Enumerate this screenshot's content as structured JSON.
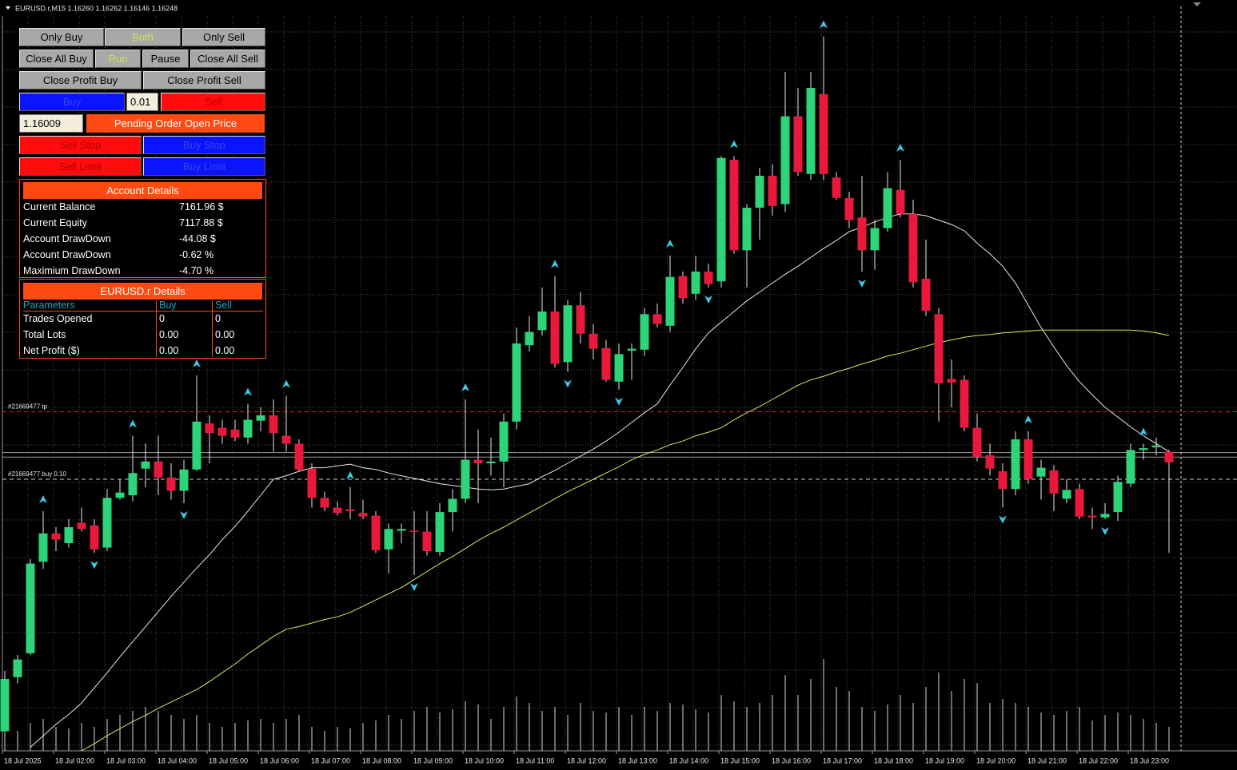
{
  "header": {
    "symbol_line": "EURUSD.r,M15  1.16260 1.16262 1.16146 1.16248"
  },
  "panel": {
    "mode_buttons": [
      "Only Buy",
      "Both",
      "Only Sell"
    ],
    "control_buttons": [
      "Close All Buy",
      "Run",
      "Pause",
      "Close All Sell"
    ],
    "profit_buttons": [
      "Close Profit Buy",
      "Close Profit Sell"
    ],
    "buy": "Buy",
    "lot": "0.01",
    "sell": "Sell",
    "pending_price": "1.16009",
    "pending_label": "Pending Order Open Price",
    "stop_buttons": [
      "Sell Stop",
      "Buy Stop"
    ],
    "limit_buttons": [
      "Sell Limit",
      "Buy Limit"
    ]
  },
  "account": {
    "title": "Account Details",
    "rows": [
      [
        "Current Balance",
        "7161.96 $"
      ],
      [
        "Current Equity",
        "7117.88 $"
      ],
      [
        "Account DrawDown",
        "-44.08 $"
      ],
      [
        "Account DrawDown",
        "-0.62 %"
      ],
      [
        "Maximium DrawDown",
        "-4.70 %"
      ]
    ]
  },
  "symbol_details": {
    "title": "EURUSD.r Details",
    "columns": [
      "Parameters",
      "Buy",
      "Sell"
    ],
    "rows": [
      [
        "Trades Opened",
        "0",
        "0"
      ],
      [
        "Total Lots",
        "0.00",
        "0.00"
      ],
      [
        "Net Profit ($)",
        "0.00",
        "0.00"
      ]
    ]
  },
  "chart_data": {
    "type": "candlestick",
    "ylim": [
      1.15923,
      1.16769
    ],
    "up_color": "#2ed47a",
    "down_color": "#e8193c",
    "flat_color": "#ffffff",
    "ohlc": [
      [
        1.15945,
        1.16013,
        1.15945,
        1.16004
      ],
      [
        1.16006,
        1.16031,
        1.15999,
        1.16026
      ],
      [
        1.16033,
        1.16139,
        1.16031,
        1.16134
      ],
      [
        1.16136,
        1.16193,
        1.16128,
        1.16168
      ],
      [
        1.16168,
        1.16175,
        1.16148,
        1.16161
      ],
      [
        1.16157,
        1.16184,
        1.16152,
        1.16175
      ],
      [
        1.1618,
        1.16197,
        1.1617,
        1.16173
      ],
      [
        1.16177,
        1.16184,
        1.16146,
        1.1615
      ],
      [
        1.16152,
        1.16218,
        1.16148,
        1.16208
      ],
      [
        1.16208,
        1.16229,
        1.16206,
        1.16214
      ],
      [
        1.16211,
        1.16278,
        1.16204,
        1.16236
      ],
      [
        1.16241,
        1.16269,
        1.1622,
        1.16249
      ],
      [
        1.16249,
        1.16278,
        1.16211,
        1.16231
      ],
      [
        1.16231,
        1.16247,
        1.16206,
        1.16216
      ],
      [
        1.16216,
        1.16251,
        1.16202,
        1.1624
      ],
      [
        1.1624,
        1.16346,
        1.16238,
        1.16294
      ],
      [
        1.16292,
        1.16301,
        1.16247,
        1.16281
      ],
      [
        1.16287,
        1.16296,
        1.16269,
        1.16278
      ],
      [
        1.16285,
        1.16296,
        1.16272,
        1.16276
      ],
      [
        1.16276,
        1.16314,
        1.16269,
        1.16296
      ],
      [
        1.16295,
        1.1631,
        1.16283,
        1.16301
      ],
      [
        1.16301,
        1.16319,
        1.1626,
        1.16281
      ],
      [
        1.16278,
        1.16323,
        1.1626,
        1.16269
      ],
      [
        1.16269,
        1.16274,
        1.16238,
        1.1624
      ],
      [
        1.16241,
        1.16247,
        1.16197,
        1.16208
      ],
      [
        1.16208,
        1.16215,
        1.16193,
        1.16197
      ],
      [
        1.16197,
        1.16204,
        1.16188,
        1.16191
      ],
      [
        1.16195,
        1.1622,
        1.16184,
        1.16193
      ],
      [
        1.16191,
        1.16206,
        1.16184,
        1.16187
      ],
      [
        1.16188,
        1.16193,
        1.16146,
        1.16149
      ],
      [
        1.1615,
        1.16179,
        1.16123,
        1.16173
      ],
      [
        1.16171,
        1.16179,
        1.16157,
        1.16173
      ],
      [
        1.16171,
        1.16193,
        1.16121,
        1.1617
      ],
      [
        1.1617,
        1.16193,
        1.16143,
        1.16148
      ],
      [
        1.16147,
        1.16202,
        1.16143,
        1.16192
      ],
      [
        1.16192,
        1.16218,
        1.1617,
        1.16207
      ],
      [
        1.16207,
        1.16319,
        1.16202,
        1.16251
      ],
      [
        1.16251,
        1.16285,
        1.16202,
        1.16247
      ],
      [
        1.16247,
        1.16276,
        1.16233,
        1.16249
      ],
      [
        1.16249,
        1.16303,
        1.1622,
        1.16294
      ],
      [
        1.16294,
        1.164,
        1.16285,
        1.16382
      ],
      [
        1.1638,
        1.16413,
        1.16373,
        1.16395
      ],
      [
        1.16397,
        1.16445,
        1.16391,
        1.16418
      ],
      [
        1.16418,
        1.16458,
        1.16355,
        1.16359
      ],
      [
        1.16361,
        1.16431,
        1.1635,
        1.16425
      ],
      [
        1.16425,
        1.1644,
        1.16382,
        1.16393
      ],
      [
        1.16393,
        1.16404,
        1.16364,
        1.16376
      ],
      [
        1.16377,
        1.16386,
        1.16339,
        1.16341
      ],
      [
        1.16339,
        1.16382,
        1.1633,
        1.1637
      ],
      [
        1.16374,
        1.16382,
        1.16341,
        1.16376
      ],
      [
        1.16375,
        1.16422,
        1.16368,
        1.16415
      ],
      [
        1.16415,
        1.16427,
        1.164,
        1.16404
      ],
      [
        1.16402,
        1.16481,
        1.16395,
        1.16457
      ],
      [
        1.16458,
        1.16463,
        1.16427,
        1.16433
      ],
      [
        1.16438,
        1.16481,
        1.16431,
        1.16463
      ],
      [
        1.16463,
        1.16472,
        1.16445,
        1.16449
      ],
      [
        1.16452,
        1.16593,
        1.16445,
        1.16591
      ],
      [
        1.16589,
        1.16593,
        1.16483,
        1.16487
      ],
      [
        1.16487,
        1.16539,
        1.16445,
        1.16535
      ],
      [
        1.16535,
        1.1658,
        1.16499,
        1.16571
      ],
      [
        1.16571,
        1.16584,
        1.16526,
        1.16537
      ],
      [
        1.16539,
        1.16688,
        1.1653,
        1.16638
      ],
      [
        1.16638,
        1.1667,
        1.16571,
        1.16575
      ],
      [
        1.16573,
        1.16688,
        1.16566,
        1.1667
      ],
      [
        1.16663,
        1.16728,
        1.16566,
        1.16573
      ],
      [
        1.16569,
        1.16575,
        1.16544,
        1.16546
      ],
      [
        1.16546,
        1.16553,
        1.16512,
        1.16521
      ],
      [
        1.16524,
        1.16571,
        1.16463,
        1.16487
      ],
      [
        1.16487,
        1.16521,
        1.16465,
        1.16512
      ],
      [
        1.16512,
        1.16575,
        1.16508,
        1.16557
      ],
      [
        1.16555,
        1.16589,
        1.16524,
        1.16528
      ],
      [
        1.16528,
        1.16544,
        1.16445,
        1.16451
      ],
      [
        1.16455,
        1.16499,
        1.16413,
        1.16419
      ],
      [
        1.16415,
        1.16422,
        1.16294,
        1.16337
      ],
      [
        1.16342,
        1.16364,
        1.1631,
        1.16338
      ],
      [
        1.16341,
        1.16346,
        1.16283,
        1.16287
      ],
      [
        1.16287,
        1.16303,
        1.16249,
        1.16254
      ],
      [
        1.16256,
        1.16269,
        1.16233,
        1.16241
      ],
      [
        1.16238,
        1.16247,
        1.16197,
        1.16218
      ],
      [
        1.16218,
        1.16283,
        1.16211,
        1.16274
      ],
      [
        1.16274,
        1.16283,
        1.16224,
        1.16229
      ],
      [
        1.16232,
        1.16251,
        1.16206,
        1.16242
      ],
      [
        1.16239,
        1.16245,
        1.16193,
        1.16213
      ],
      [
        1.16207,
        1.16229,
        1.16202,
        1.16217
      ],
      [
        1.16218,
        1.16224,
        1.16184,
        1.16187
      ],
      [
        1.16188,
        1.16197,
        1.16173,
        1.16186
      ],
      [
        1.16186,
        1.16202,
        1.16184,
        1.1619
      ],
      [
        1.16192,
        1.16233,
        1.16182,
        1.16226
      ],
      [
        1.16224,
        1.16269,
        1.1622,
        1.16262
      ],
      [
        1.16262,
        1.16269,
        1.16251,
        1.16264
      ],
      [
        1.16265,
        1.16276,
        1.16256,
        1.16267
      ],
      [
        1.1626,
        1.16262,
        1.16146,
        1.16248
      ]
    ],
    "lines": [
      {
        "color": "#e8e8e8",
        "values": [
          null,
          null,
          1.15927,
          1.1594,
          1.15953,
          1.15964,
          1.15977,
          1.15994,
          1.16011,
          1.16029,
          1.16046,
          1.16063,
          1.1608,
          1.16097,
          1.16113,
          1.16129,
          1.16144,
          1.16161,
          1.16176,
          1.16193,
          1.16211,
          1.16229,
          1.16233,
          1.16238,
          1.16242,
          1.16242,
          1.16244,
          1.16246,
          1.16242,
          1.1624,
          1.16236,
          1.16233,
          1.1623,
          1.16227,
          1.16224,
          1.16222,
          1.1622,
          1.16218,
          1.16217,
          1.16218,
          1.16221,
          1.16224,
          1.16232,
          1.16239,
          1.16247,
          1.16255,
          1.16263,
          1.16272,
          1.16282,
          1.16293,
          1.16304,
          1.16314,
          1.16335,
          1.16355,
          1.16376,
          1.16394,
          1.16406,
          1.16418,
          1.1643,
          1.1644,
          1.1645,
          1.1646,
          1.16469,
          1.16479,
          1.16489,
          1.16498,
          1.16508,
          1.16513,
          1.16519,
          1.16524,
          1.16528,
          1.16528,
          1.16526,
          1.16521,
          1.16516,
          1.16509,
          1.16495,
          1.16483,
          1.16469,
          1.1645,
          1.16425,
          1.164,
          1.16378,
          1.16357,
          1.16339,
          1.16324,
          1.1631,
          1.16299,
          1.16288,
          1.16278,
          1.16269,
          1.1626
        ]
      },
      {
        "color": "#e6e65a",
        "values": [
          null,
          null,
          null,
          null,
          null,
          null,
          1.15923,
          1.15931,
          1.1594,
          1.15948,
          1.15956,
          1.15963,
          1.15971,
          1.15978,
          1.15985,
          1.15992,
          1.16001,
          1.16011,
          1.16021,
          1.16032,
          1.16042,
          1.16052,
          1.1606,
          1.16063,
          1.16067,
          1.16071,
          1.16074,
          1.16079,
          1.16086,
          1.16093,
          1.161,
          1.16107,
          1.16116,
          1.16125,
          1.16134,
          1.16142,
          1.16151,
          1.1616,
          1.16168,
          1.16175,
          1.16183,
          1.16191,
          1.16199,
          1.16207,
          1.16215,
          1.16222,
          1.16229,
          1.16236,
          1.16243,
          1.16251,
          1.16257,
          1.16262,
          1.16268,
          1.16272,
          1.16278,
          1.16282,
          1.16287,
          1.16296,
          1.16304,
          1.16311,
          1.16319,
          1.16327,
          1.16335,
          1.16341,
          1.16345,
          1.1635,
          1.16354,
          1.16359,
          1.16363,
          1.16368,
          1.16371,
          1.16375,
          1.16379,
          1.16383,
          1.16386,
          1.16389,
          1.16391,
          1.16392,
          1.16394,
          1.16395,
          1.16396,
          1.16397,
          1.16397,
          1.16397,
          1.16397,
          1.16397,
          1.16397,
          1.16397,
          1.16397,
          1.16396,
          1.16394,
          1.16391
        ]
      }
    ],
    "fractal_color": "#3fc8e4",
    "fractal_up": [
      null,
      null,
      null,
      1.16193,
      null,
      null,
      null,
      null,
      null,
      null,
      1.16278,
      null,
      null,
      null,
      null,
      1.16346,
      null,
      null,
      null,
      1.16314,
      null,
      null,
      1.16323,
      null,
      null,
      null,
      null,
      1.1622,
      null,
      null,
      null,
      null,
      null,
      null,
      null,
      null,
      1.16319,
      null,
      null,
      null,
      null,
      null,
      null,
      1.16458,
      null,
      null,
      null,
      null,
      null,
      null,
      null,
      null,
      1.16481,
      null,
      null,
      null,
      null,
      1.16593,
      null,
      null,
      null,
      null,
      null,
      null,
      1.16728,
      null,
      null,
      null,
      null,
      null,
      1.16589,
      null,
      null,
      null,
      null,
      null,
      null,
      null,
      null,
      null,
      1.16283,
      null,
      null,
      null,
      null,
      null,
      null,
      null,
      null,
      1.16269,
      null,
      null
    ],
    "fractal_down": [
      null,
      null,
      null,
      null,
      null,
      null,
      null,
      1.16146,
      null,
      null,
      null,
      null,
      null,
      null,
      1.16202,
      null,
      null,
      null,
      null,
      null,
      null,
      null,
      null,
      null,
      null,
      null,
      null,
      null,
      null,
      null,
      null,
      null,
      1.16121,
      null,
      null,
      null,
      null,
      null,
      null,
      null,
      null,
      null,
      null,
      null,
      1.1635,
      null,
      null,
      null,
      1.1633,
      null,
      null,
      null,
      null,
      null,
      null,
      1.16445,
      null,
      null,
      null,
      null,
      null,
      null,
      null,
      null,
      null,
      null,
      null,
      1.16463,
      null,
      null,
      null,
      null,
      null,
      null,
      null,
      null,
      null,
      null,
      1.16197,
      null,
      null,
      null,
      null,
      null,
      null,
      null,
      1.16184,
      null,
      null,
      null,
      null,
      null
    ],
    "vlim": [
      0,
      940
    ],
    "volumes": [
      30,
      25,
      35,
      40,
      30,
      28,
      35,
      30,
      40,
      45,
      50,
      55,
      50,
      45,
      40,
      45,
      35,
      30,
      35,
      38,
      40,
      35,
      40,
      45,
      30,
      25,
      30,
      28,
      35,
      38,
      45,
      40,
      50,
      55,
      48,
      52,
      62,
      58,
      40,
      55,
      68,
      60,
      50,
      55,
      45,
      60,
      50,
      48,
      55,
      45,
      55,
      50,
      60,
      58,
      52,
      48,
      70,
      62,
      55,
      60,
      70,
      95,
      70,
      90,
      115,
      80,
      75,
      55,
      50,
      58,
      70,
      60,
      80,
      98,
      75,
      90,
      85,
      60,
      65,
      60,
      55,
      48,
      45,
      50,
      55,
      38,
      45,
      48,
      45,
      40,
      35,
      30
    ],
    "order_lines": [
      {
        "label": "#21669477 tp",
        "value": 1.16305,
        "color": "#e02020"
      },
      {
        "label": "#21669477 buy 0.10",
        "value": 1.16229,
        "color": "#d0d0d0"
      }
    ],
    "price_lines": [
      1.16259,
      1.16254
    ],
    "time_labels": [
      "18 Jul 2025",
      "18 Jul 02:00",
      "18 Jul 03:00",
      "18 Jul 04:00",
      "18 Jul 05:00",
      "18 Jul 06:00",
      "18 Jul 07:00",
      "18 Jul 08:00",
      "18 Jul 09:00",
      "18 Jul 10:00",
      "18 Jul 11:00",
      "18 Jul 12:00",
      "18 Jul 13:00",
      "18 Jul 14:00",
      "18 Jul 15:00",
      "18 Jul 16:00",
      "18 Jul 17:00",
      "18 Jul 18:00",
      "18 Jul 19:00",
      "18 Jul 20:00",
      "18 Jul 21:00",
      "18 Jul 22:00",
      "18 Jul 23:00"
    ]
  }
}
